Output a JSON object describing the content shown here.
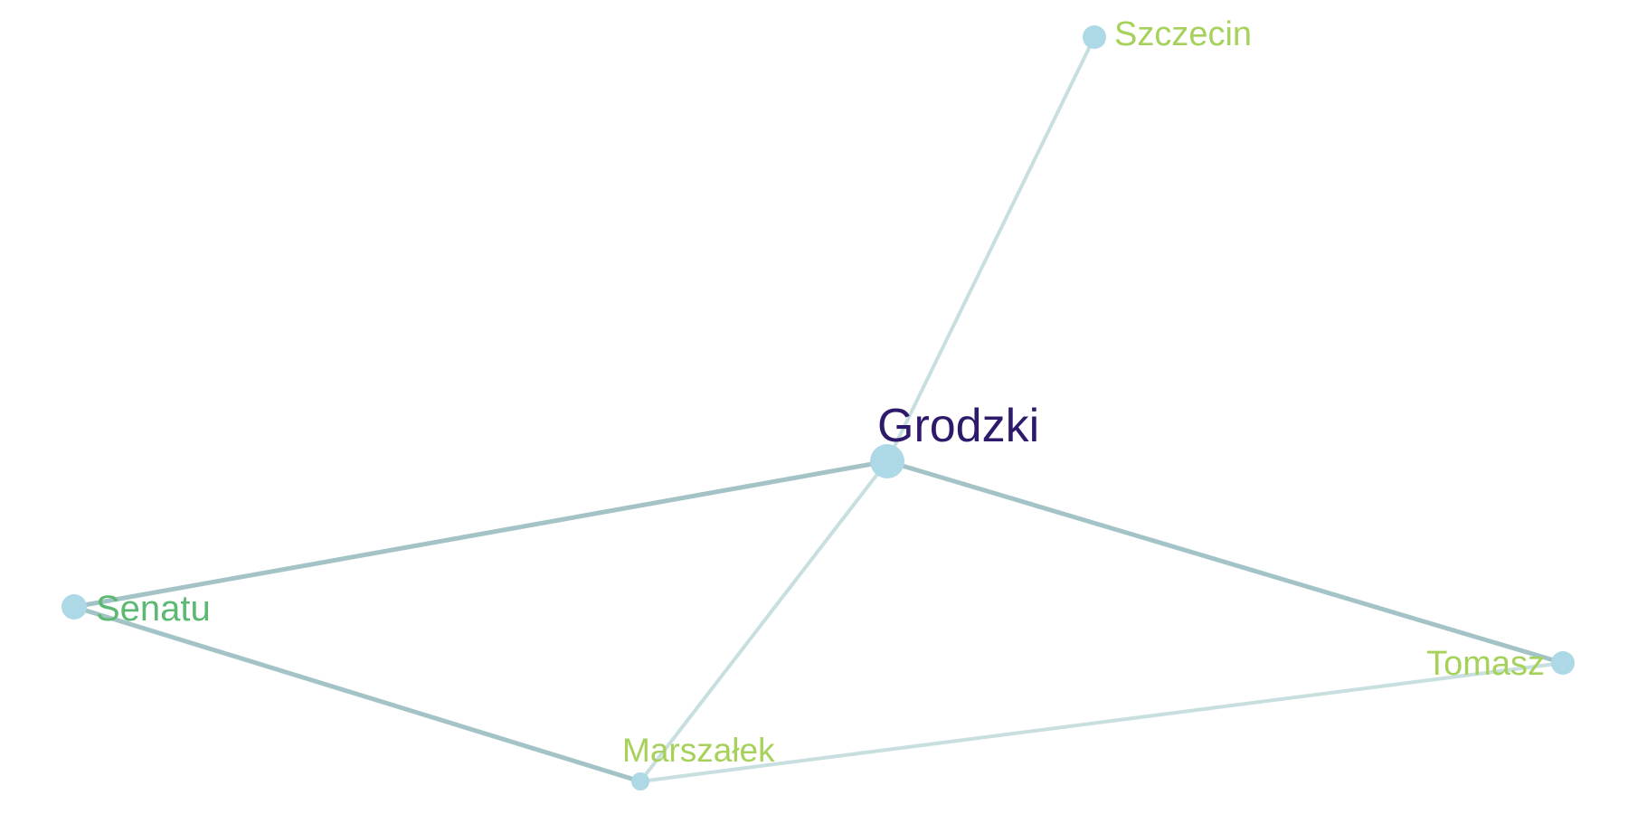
{
  "graph": {
    "nodes": [
      {
        "id": "grodzki",
        "label": "Grodzki",
        "label_color": "#2d1a6b"
      },
      {
        "id": "szczecin",
        "label": "Szczecin",
        "label_color": "#a6d15a"
      },
      {
        "id": "senatu",
        "label": "Senatu",
        "label_color": "#5cb872"
      },
      {
        "id": "marszalek",
        "label": "Marszałek",
        "label_color": "#a6d15a"
      },
      {
        "id": "tomasz",
        "label": "Tomasz",
        "label_color": "#a6d15a"
      }
    ],
    "edges": [
      {
        "source": "grodzki",
        "target": "szczecin",
        "color": "#c8dfe0"
      },
      {
        "source": "grodzki",
        "target": "senatu",
        "color": "#a3c3c6"
      },
      {
        "source": "grodzki",
        "target": "tomasz",
        "color": "#a3c3c6"
      },
      {
        "source": "grodzki",
        "target": "marszalek",
        "color": "#c8dfe0"
      },
      {
        "source": "senatu",
        "target": "marszalek",
        "color": "#a3c3c6"
      },
      {
        "source": "marszalek",
        "target": "tomasz",
        "color": "#c8dfe0"
      }
    ],
    "node_color": "#add8e6"
  }
}
